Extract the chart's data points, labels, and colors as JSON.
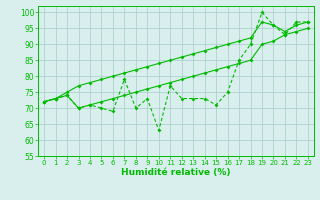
{
  "x": [
    0,
    1,
    2,
    3,
    4,
    5,
    6,
    7,
    8,
    9,
    10,
    11,
    12,
    13,
    14,
    15,
    16,
    17,
    18,
    19,
    20,
    21,
    22,
    23
  ],
  "y_main": [
    72,
    73,
    74,
    70,
    71,
    70,
    69,
    79,
    70,
    73,
    63,
    77,
    73,
    73,
    73,
    71,
    75,
    85,
    90,
    100,
    96,
    93,
    97,
    97
  ],
  "y_upper": [
    72,
    73,
    75,
    77,
    78,
    79,
    80,
    81,
    82,
    83,
    84,
    85,
    86,
    87,
    88,
    89,
    90,
    91,
    92,
    97,
    96,
    94,
    96,
    97
  ],
  "y_lower": [
    72,
    73,
    74,
    70,
    71,
    72,
    73,
    74,
    75,
    76,
    77,
    78,
    79,
    80,
    81,
    82,
    83,
    84,
    85,
    90,
    91,
    93,
    94,
    95
  ],
  "line_color": "#00bb00",
  "bg_color": "#d8efee",
  "grid_color": "#a8ccc8",
  "ylim": [
    55,
    102
  ],
  "xlim": [
    -0.5,
    23.5
  ],
  "yticks": [
    55,
    60,
    65,
    70,
    75,
    80,
    85,
    90,
    95,
    100
  ],
  "xticks": [
    0,
    1,
    2,
    3,
    4,
    5,
    6,
    7,
    8,
    9,
    10,
    11,
    12,
    13,
    14,
    15,
    16,
    17,
    18,
    19,
    20,
    21,
    22,
    23
  ],
  "xlabel": "Humidité relative (%)",
  "linewidth": 0.8,
  "markersize": 2.0,
  "tick_fontsize": 5.0,
  "label_fontsize": 6.5
}
